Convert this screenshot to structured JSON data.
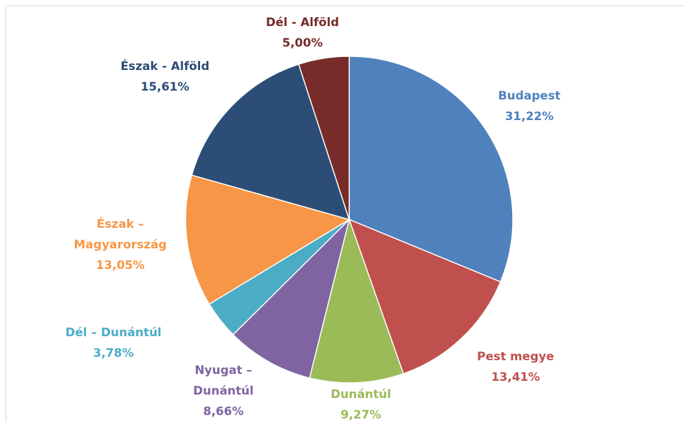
{
  "chart_data": {
    "type": "pie",
    "categories": [
      "Budapest",
      "Pest megye",
      "Dunántúl",
      "Nyugat – Dunántúl",
      "Dél – Dunántúl",
      "Észak – Magyarország",
      "Észak - Alföld",
      "Dél - Alföld"
    ],
    "values": [
      31.22,
      13.41,
      9.27,
      8.66,
      3.78,
      13.05,
      15.61,
      5.0
    ],
    "value_labels": [
      "31,22%",
      "13,41%",
      "9,27%",
      "8,66%",
      "3,78%",
      "13,05%",
      "15,61%",
      "5,00%"
    ],
    "colors": [
      "#4f81bd",
      "#c0504d",
      "#9bbb59",
      "#8064a2",
      "#4bacc6",
      "#f79646",
      "#2c4d75",
      "#772c2a"
    ]
  }
}
